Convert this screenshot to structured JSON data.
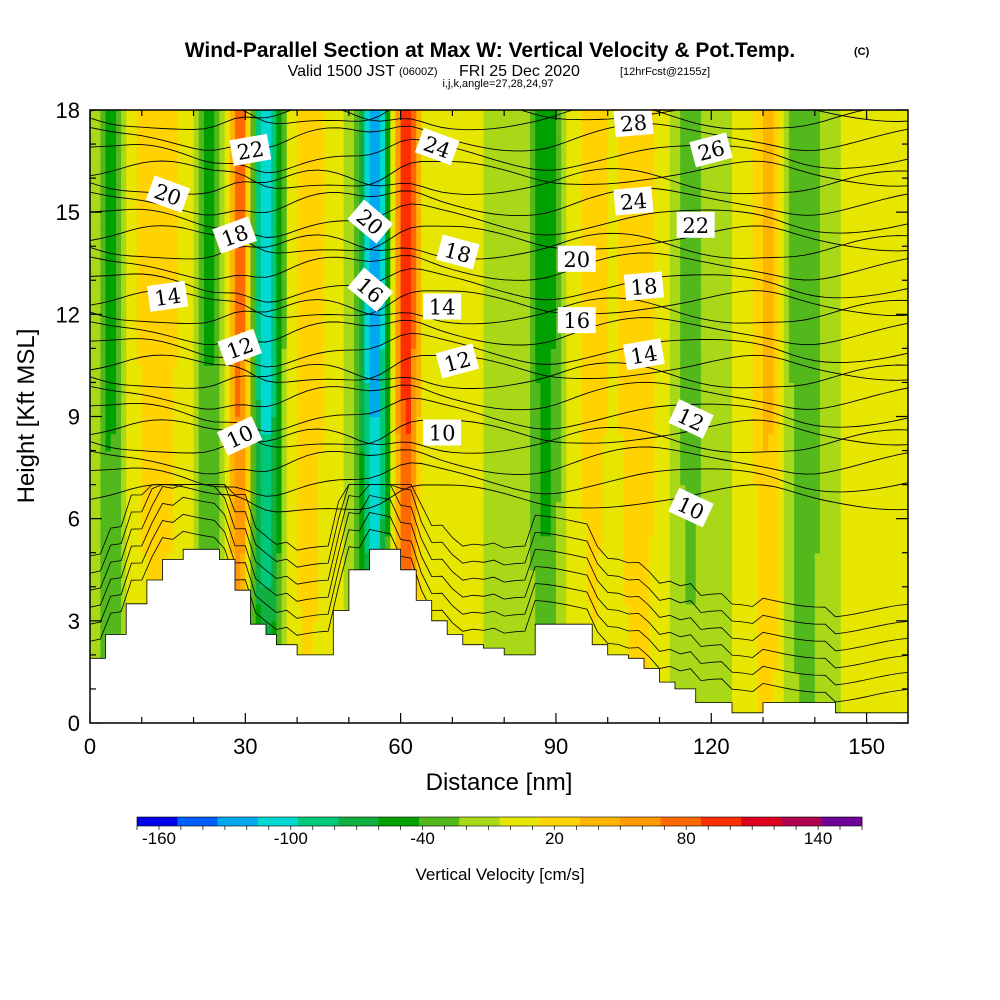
{
  "title": {
    "main": "Wind-Parallel Section at Max W: Vertical Velocity & Pot.Temp.",
    "main_tag": "(C)",
    "valid_prefix": "Valid 1500 JST",
    "valid_utc": "(0600Z)",
    "valid_date": "FRI 25 Dec 2020",
    "valid_fcst": "[12hrFcst@2155z]",
    "indices": "i,j,k,angle=27,28,24,97"
  },
  "chart_data": {
    "type": "heatmap",
    "xlabel": "Distance [nm]",
    "ylabel": "Height [Kft MSL]",
    "xlim": [
      0,
      158
    ],
    "ylim": [
      0,
      18
    ],
    "x_ticks": [
      "0",
      "30",
      "60",
      "90",
      "120",
      "150"
    ],
    "x_tick_values": [
      0,
      30,
      60,
      90,
      120,
      150
    ],
    "x_minor_step": 10,
    "y_ticks": [
      "0",
      "3",
      "6",
      "9",
      "12",
      "15",
      "18"
    ],
    "y_tick_values": [
      0,
      3,
      6,
      9,
      12,
      15,
      18
    ],
    "y_minor_step": 1,
    "colorbar": {
      "title": "Vertical Velocity [cm/s]",
      "labels": [
        "-160",
        "-100",
        "-40",
        "20",
        "80",
        "140"
      ],
      "label_values": [
        -160,
        -100,
        -40,
        20,
        80,
        140
      ],
      "min": -170,
      "max": 160,
      "step": 20,
      "colors": [
        "#0000e6",
        "#0060ff",
        "#00a8f0",
        "#00d8d0",
        "#00c87a",
        "#10b040",
        "#00a000",
        "#52b81c",
        "#a8d818",
        "#e6e600",
        "#ffd200",
        "#ffb400",
        "#ff9a00",
        "#ff6a00",
        "#ff2e00",
        "#e00020",
        "#b00050",
        "#70009a"
      ]
    },
    "terrain_kft": [
      [
        0,
        1.9
      ],
      [
        3,
        2.6
      ],
      [
        7,
        3.5
      ],
      [
        11,
        4.2
      ],
      [
        14,
        4.8
      ],
      [
        18,
        5.1
      ],
      [
        22,
        5.1
      ],
      [
        25,
        4.8
      ],
      [
        28,
        3.9
      ],
      [
        31,
        2.9
      ],
      [
        34,
        2.6
      ],
      [
        36,
        2.3
      ],
      [
        40,
        2.0
      ],
      [
        44,
        2.0
      ],
      [
        47,
        3.3
      ],
      [
        50,
        4.5
      ],
      [
        54,
        5.1
      ],
      [
        57,
        5.1
      ],
      [
        60,
        4.5
      ],
      [
        63,
        3.6
      ],
      [
        66,
        3.0
      ],
      [
        69,
        2.6
      ],
      [
        72,
        2.3
      ],
      [
        76,
        2.2
      ],
      [
        80,
        2.0
      ],
      [
        84,
        2.0
      ],
      [
        86,
        2.9
      ],
      [
        90,
        2.9
      ],
      [
        94,
        2.9
      ],
      [
        97,
        2.3
      ],
      [
        100,
        2.0
      ],
      [
        104,
        1.9
      ],
      [
        107,
        1.6
      ],
      [
        110,
        1.2
      ],
      [
        113,
        1.0
      ],
      [
        117,
        0.6
      ],
      [
        120,
        0.6
      ],
      [
        124,
        0.3
      ],
      [
        130,
        0.3
      ],
      [
        130,
        0.6
      ],
      [
        141,
        0.6
      ],
      [
        144,
        0.3
      ],
      [
        158,
        0.3
      ]
    ],
    "w_columns": [
      {
        "x": 0,
        "w": 0,
        "halfwidth": 3
      },
      {
        "x": 4,
        "w": -50,
        "halfwidth": 2.5
      },
      {
        "x": 13,
        "w": 35,
        "halfwidth": 5
      },
      {
        "x": 23,
        "w": -45,
        "halfwidth": 2.5
      },
      {
        "x": 29,
        "w": 100,
        "halfwidth": 2
      },
      {
        "x": 34,
        "w": -120,
        "halfwidth": 3
      },
      {
        "x": 42,
        "w": 35,
        "halfwidth": 4
      },
      {
        "x": 55,
        "w": -140,
        "halfwidth": 3
      },
      {
        "x": 61,
        "w": 120,
        "halfwidth": 2.5
      },
      {
        "x": 71,
        "w": 20,
        "halfwidth": 4
      },
      {
        "x": 79,
        "w": -20,
        "halfwidth": 3
      },
      {
        "x": 88,
        "w": -55,
        "halfwidth": 3
      },
      {
        "x": 97,
        "w": 30,
        "halfwidth": 4
      },
      {
        "x": 106,
        "w": 40,
        "halfwidth": 4
      },
      {
        "x": 116,
        "w": -30,
        "halfwidth": 3.5
      },
      {
        "x": 131,
        "w": 50,
        "halfwidth": 3
      },
      {
        "x": 138,
        "w": -40,
        "halfwidth": 4
      },
      {
        "x": 151,
        "w": 10,
        "halfwidth": 5
      }
    ],
    "theta_contour_levels": [
      10,
      12,
      14,
      16,
      18,
      20,
      22,
      24,
      26,
      28
    ],
    "theta_labels": [
      {
        "text": "22",
        "x": 31,
        "y": 16.8,
        "rot": -10
      },
      {
        "text": "20",
        "x": 15,
        "y": 15.5,
        "rot": 20
      },
      {
        "text": "18",
        "x": 28,
        "y": 14.3,
        "rot": -20
      },
      {
        "text": "14",
        "x": 15,
        "y": 12.5,
        "rot": -8
      },
      {
        "text": "12",
        "x": 29,
        "y": 11.0,
        "rot": -20
      },
      {
        "text": "10",
        "x": 29,
        "y": 8.4,
        "rot": -25
      },
      {
        "text": "24",
        "x": 67,
        "y": 16.9,
        "rot": 20
      },
      {
        "text": "20",
        "x": 54,
        "y": 14.7,
        "rot": 40
      },
      {
        "text": "18",
        "x": 71,
        "y": 13.8,
        "rot": 15
      },
      {
        "text": "16",
        "x": 54,
        "y": 12.7,
        "rot": 40
      },
      {
        "text": "14",
        "x": 68,
        "y": 12.2,
        "rot": 0
      },
      {
        "text": "12",
        "x": 71,
        "y": 10.6,
        "rot": -15
      },
      {
        "text": "10",
        "x": 68,
        "y": 8.5,
        "rot": 0
      },
      {
        "text": "28",
        "x": 105,
        "y": 17.6,
        "rot": -5
      },
      {
        "text": "26",
        "x": 120,
        "y": 16.8,
        "rot": -15
      },
      {
        "text": "24",
        "x": 105,
        "y": 15.3,
        "rot": -5
      },
      {
        "text": "22",
        "x": 117,
        "y": 14.6,
        "rot": 0
      },
      {
        "text": "20",
        "x": 94,
        "y": 13.6,
        "rot": 0
      },
      {
        "text": "18",
        "x": 107,
        "y": 12.8,
        "rot": -5
      },
      {
        "text": "16",
        "x": 94,
        "y": 11.8,
        "rot": 0
      },
      {
        "text": "14",
        "x": 107,
        "y": 10.8,
        "rot": -10
      },
      {
        "text": "12",
        "x": 116,
        "y": 8.9,
        "rot": 25
      },
      {
        "text": "10",
        "x": 116,
        "y": 6.3,
        "rot": 25
      }
    ]
  }
}
